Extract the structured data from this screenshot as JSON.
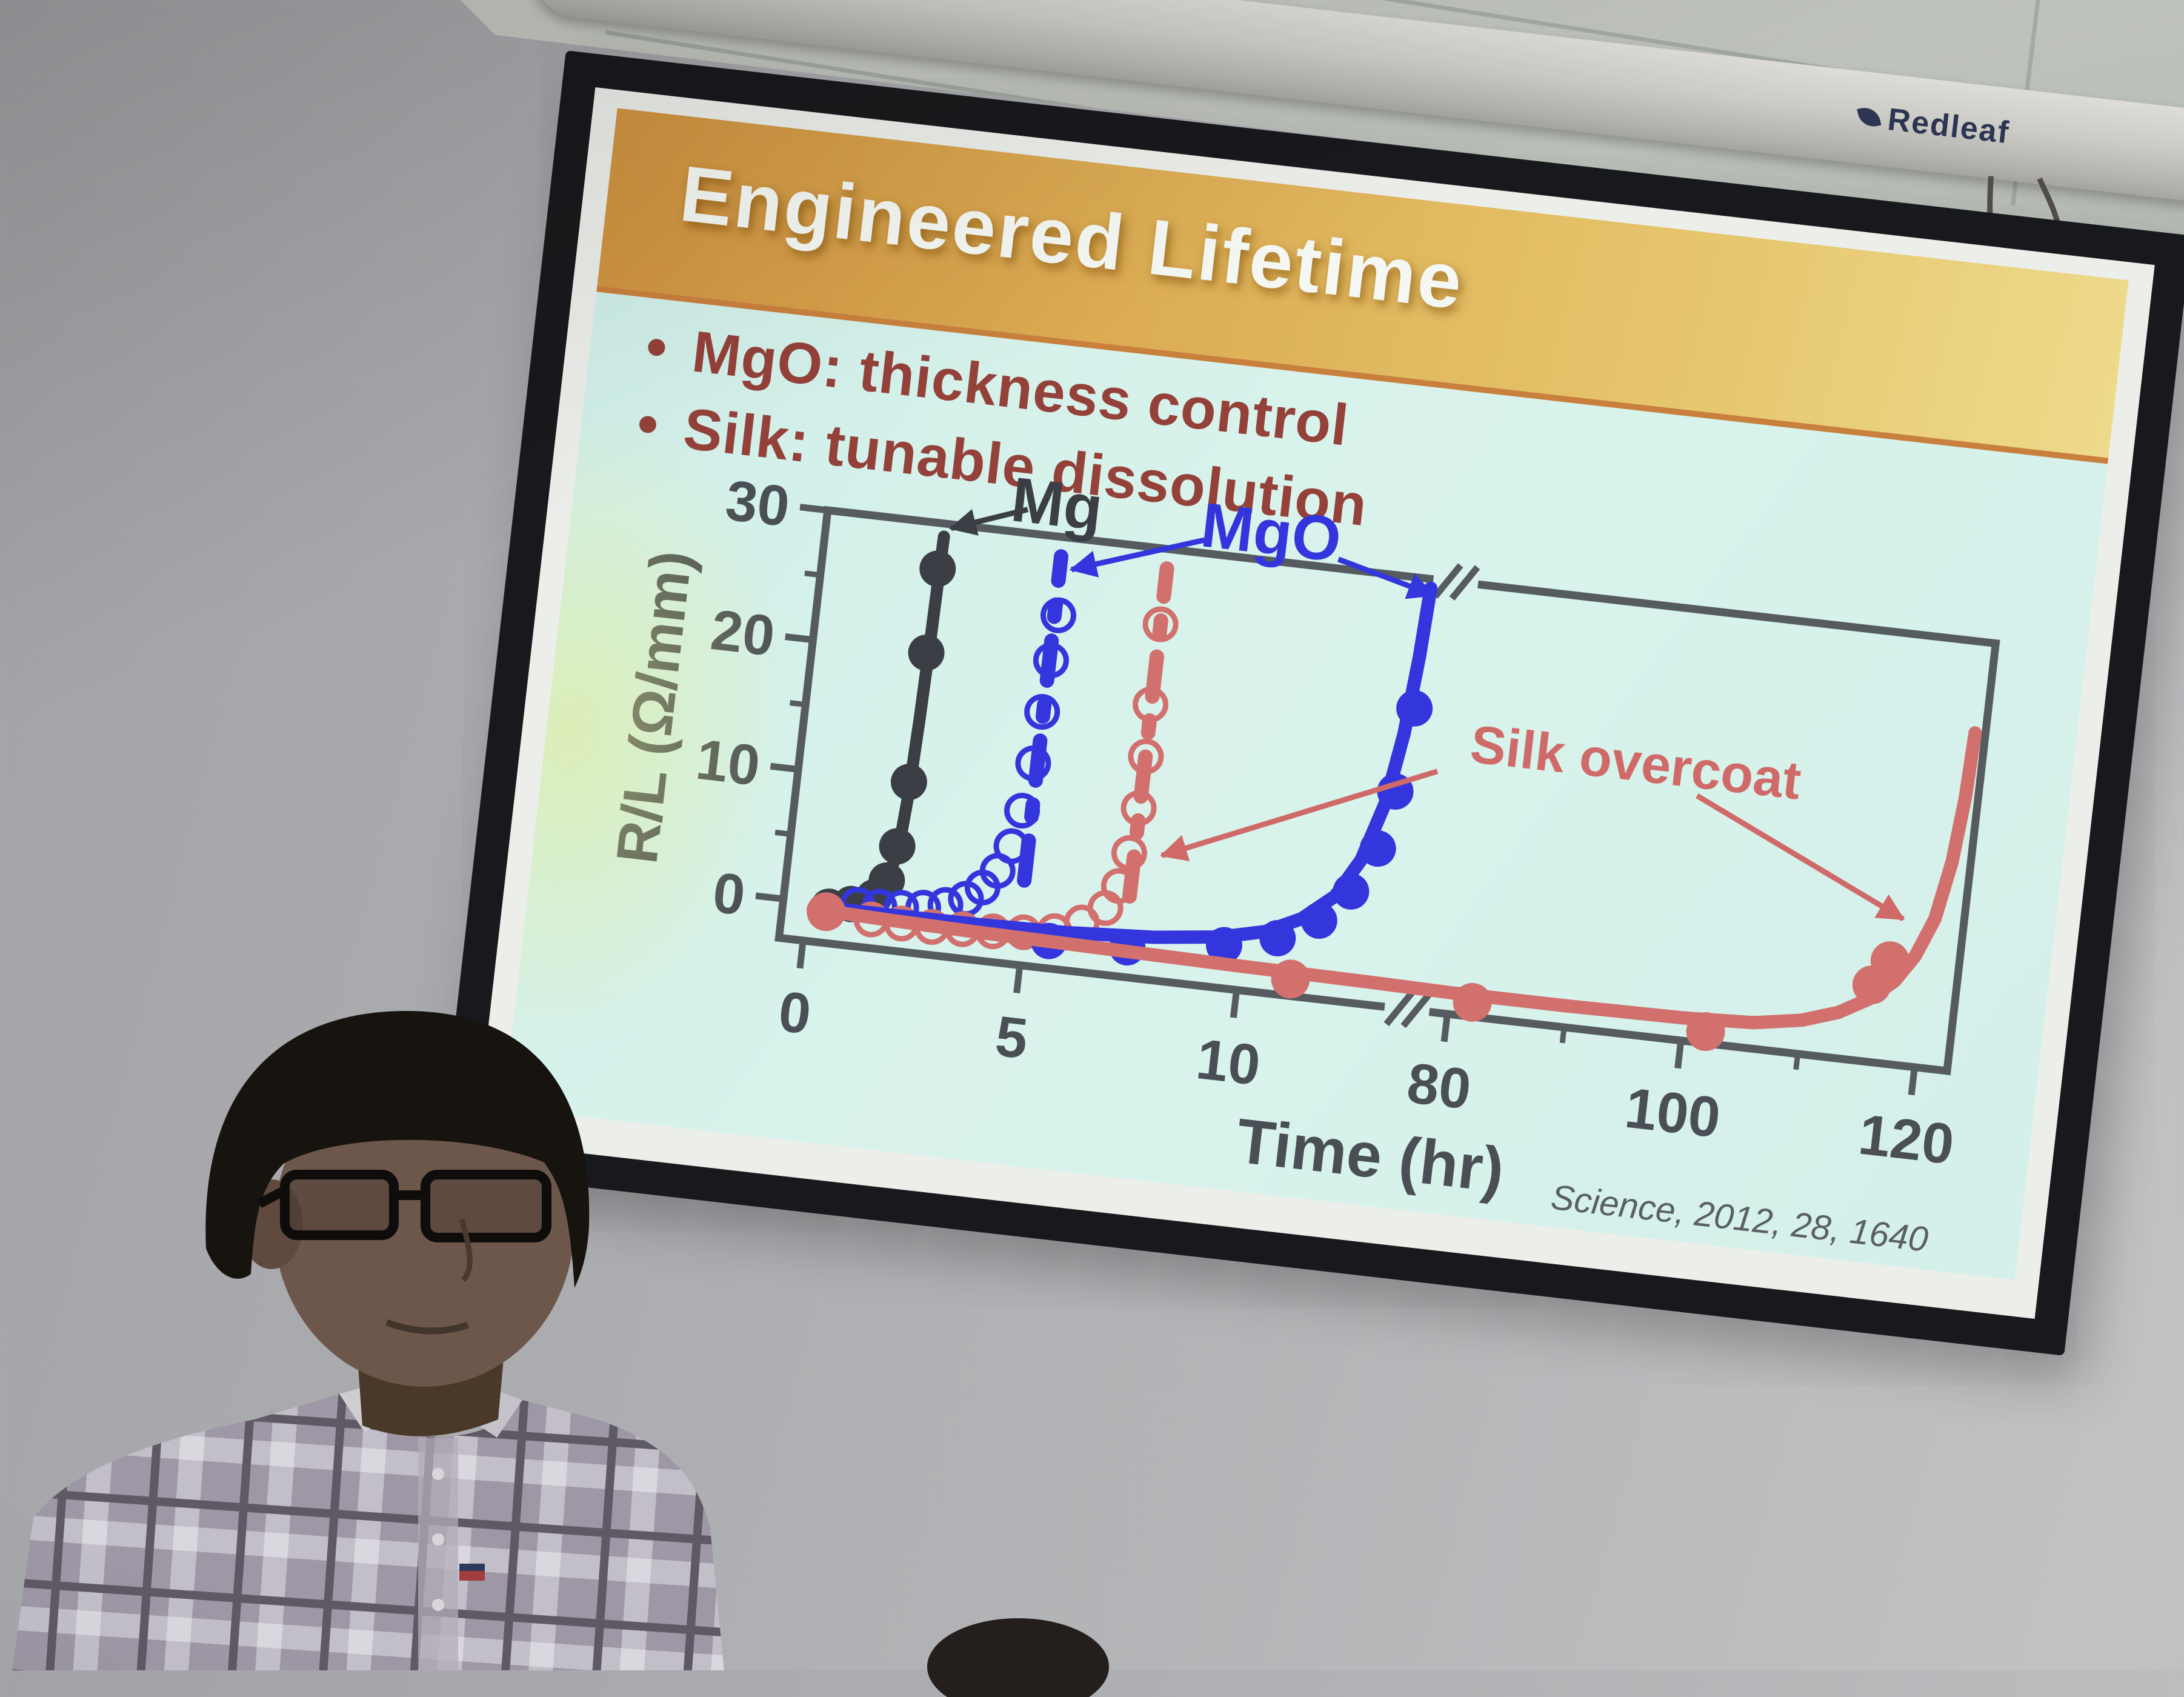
{
  "screen": {
    "housing_label": "Redleaf"
  },
  "slide": {
    "title": "Engineered Lifetime",
    "bullets": [
      "MgO: thickness control",
      "Silk: tunable dissolution"
    ],
    "colors": {
      "banner_orange": "#dcae55",
      "slide_background": "#d9f3ec",
      "bullet_text": "#94413a",
      "mg_black": "#3b3f45",
      "mgo_blue": "#3436dd",
      "silk_red": "#d2706e"
    }
  },
  "chart_data": {
    "type": "line",
    "title": "",
    "xlabel": "Time (hr)",
    "ylabel": "R/L (Ω/mm)",
    "citation": "Science, 2012, 28, 1640",
    "axis_break": true,
    "x_ticks_left": [
      0,
      5,
      10
    ],
    "x_ticks_right": [
      80,
      100,
      120
    ],
    "x_minor_ticks_right": [
      90,
      110
    ],
    "y_ticks": [
      0,
      10,
      20,
      30
    ],
    "y_minor_ticks": [
      5,
      15,
      25
    ],
    "ylim": [
      -3,
      30
    ],
    "xlim_left": [
      0,
      13.6
    ],
    "xlim_right": [
      80,
      122.8
    ],
    "axis_color": "#565b60",
    "label_color": "#4a4f55",
    "citation_color": "#5a5f63",
    "legend_position": "annotated-in-plot",
    "grid": false,
    "series": [
      {
        "name": "Mg",
        "color": "#3b3f45",
        "style": "solid",
        "marker": "filled",
        "marker_r": 30,
        "width": 20,
        "line": [
          [
            0.3,
            -0.3
          ],
          [
            0.9,
            -0.1
          ],
          [
            1.3,
            0.4
          ],
          [
            1.6,
            1.2
          ],
          [
            1.8,
            2.6
          ],
          [
            1.95,
            5.5
          ],
          [
            2.02,
            9
          ],
          [
            2.08,
            15
          ],
          [
            2.12,
            21
          ],
          [
            2.16,
            29
          ]
        ],
        "points": [
          [
            0.5,
            -0.2
          ],
          [
            1.0,
            0.2
          ],
          [
            1.5,
            0.9
          ],
          [
            1.75,
            2.3
          ],
          [
            1.9,
            5
          ],
          [
            2.0,
            10
          ],
          [
            2.06,
            20
          ],
          [
            2.1,
            26.5
          ]
        ]
      },
      {
        "name": "MgO (thin, dashed)",
        "color": "#3436dd",
        "style": "dashdot",
        "marker": "open",
        "marker_r": 25,
        "width": 24,
        "line": [
          [
            4.88,
            3.5
          ],
          [
            4.88,
            28.5
          ]
        ],
        "points": [
          [
            1.15,
            0.2
          ],
          [
            1.65,
            0.25
          ],
          [
            2.15,
            0.35
          ],
          [
            2.65,
            0.55
          ],
          [
            3.15,
            0.95
          ],
          [
            3.6,
            1.6
          ],
          [
            3.95,
            2.6
          ],
          [
            4.25,
            4
          ],
          [
            4.5,
            6
          ],
          [
            4.65,
            8.8
          ],
          [
            4.78,
            12.5
          ],
          [
            4.85,
            16.5
          ],
          [
            4.92,
            20.5
          ],
          [
            4.97,
            24
          ]
        ]
      },
      {
        "name": "Silk (thin, dashed)",
        "color": "#d2706e",
        "style": "dashdot",
        "marker": "open",
        "marker_r": 25,
        "width": 24,
        "line": [
          [
            7.32,
            3.2
          ],
          [
            7.32,
            28.5
          ]
        ],
        "points": [
          [
            1.5,
            -0.8
          ],
          [
            2.2,
            -0.85
          ],
          [
            2.9,
            -0.85
          ],
          [
            3.6,
            -0.75
          ],
          [
            4.3,
            -0.65
          ],
          [
            5.0,
            -0.45
          ],
          [
            5.7,
            -0.1
          ],
          [
            6.3,
            0.8
          ],
          [
            6.8,
            2.1
          ],
          [
            7.05,
            3.9
          ],
          [
            7.2,
            6.5
          ],
          [
            7.3,
            10
          ],
          [
            7.33,
            14
          ],
          [
            7.3,
            18
          ],
          [
            7.32,
            24.2
          ]
        ]
      },
      {
        "name": "MgO (thick, solid)",
        "color": "#3436dd",
        "style": "solid",
        "marker": "filled",
        "marker_r": 30,
        "width": 22,
        "line": [
          [
            0.2,
            -0.3
          ],
          [
            2,
            -0.3
          ],
          [
            4,
            -0.25
          ],
          [
            6,
            -0.1
          ],
          [
            8,
            0.3
          ],
          [
            9.5,
            0.9
          ],
          [
            10.5,
            1.7
          ],
          [
            11.3,
            3
          ],
          [
            12,
            5
          ],
          [
            12.5,
            8
          ],
          [
            12.9,
            12.5
          ],
          [
            13.15,
            18
          ],
          [
            13.3,
            24
          ],
          [
            13.38,
            29.3
          ]
        ],
        "points": [
          [
            5.6,
            -0.9
          ],
          [
            7.4,
            -0.7
          ],
          [
            9.6,
            0.3
          ],
          [
            10.8,
            1.3
          ],
          [
            11.7,
            3
          ],
          [
            12.35,
            5.5
          ],
          [
            12.85,
            9
          ],
          [
            13.1,
            13.5
          ],
          [
            13.32,
            20
          ]
        ]
      },
      {
        "name": "Silk overcoat (thick, solid)",
        "color": "#d2706e",
        "style": "solid",
        "marker": "filled",
        "marker_r": 32,
        "width": 22,
        "line": [
          [
            0.15,
            -0.5
          ],
          [
            2,
            -0.7
          ],
          [
            4,
            -0.85
          ],
          [
            6,
            -0.95
          ],
          [
            8,
            -1.05
          ],
          [
            10,
            -1.15
          ],
          [
            13,
            -1.25
          ],
          [
            80,
            -1.35
          ],
          [
            90,
            -1.35
          ],
          [
            100,
            -1.25
          ],
          [
            106,
            -1.0
          ],
          [
            110,
            -0.4
          ],
          [
            113,
            0.5
          ],
          [
            115.5,
            1.8
          ],
          [
            117.5,
            3.4
          ],
          [
            119,
            5.5
          ],
          [
            120.3,
            8.5
          ],
          [
            121.2,
            13
          ],
          [
            121.7,
            18
          ],
          [
            121.9,
            23
          ]
        ],
        "points": [
          [
            0.45,
            -0.6
          ],
          [
            11.2,
            -1.7
          ],
          [
            82,
            -1.9
          ],
          [
            102,
            -2.1
          ],
          [
            115.6,
            2.9
          ],
          [
            116.9,
            4.9
          ]
        ]
      }
    ],
    "annotations": [
      {
        "text": "Mg",
        "color": "#3b3f45",
        "font": 104,
        "at": [
          4.65,
          32.2
        ],
        "arrows": [
          [
            [
              4.0,
              31.8
            ],
            [
              2.3,
              29.7
            ]
          ]
        ]
      },
      {
        "text": "MgO",
        "color": "#3436dd",
        "font": 104,
        "at": [
          9.6,
          31.9
        ],
        "arrows": [
          [
            [
              8.1,
              31.0
            ],
            [
              5.15,
              27.6
            ]
          ],
          [
            [
              11.2,
              30.7
            ],
            [
              13.45,
              28.8
            ]
          ]
        ]
      },
      {
        "text": "Silk overcoat",
        "color": "#cf6a68",
        "font": 88,
        "at": [
          93.5,
          17.8
        ],
        "arrows": [
          [
            [
              35,
              15.4
            ],
            [
              7.95,
              6.6
            ]
          ],
          [
            [
              99,
              15.8
            ],
            [
              117.6,
              8.2
            ]
          ]
        ]
      }
    ]
  }
}
